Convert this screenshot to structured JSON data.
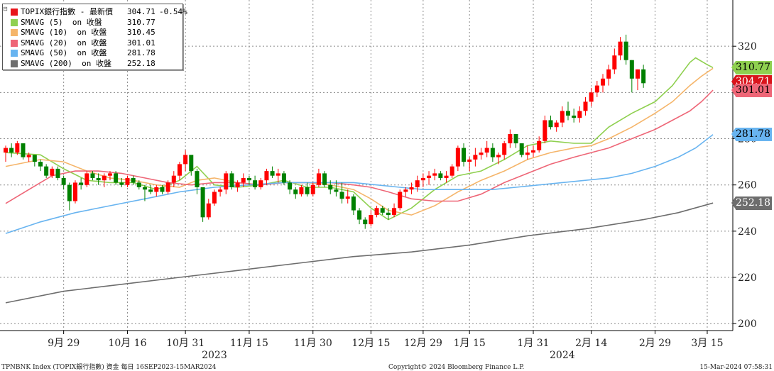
{
  "legend": {
    "rows": [
      {
        "name": "TOPIX銀行指數 - 最新價",
        "value": "304.71",
        "change": "-0.54%",
        "color": "#e8141b"
      },
      {
        "name": "SMAVG (5)  on 收盤",
        "value": "310.77",
        "change": "",
        "color": "#8fd050"
      },
      {
        "name": "SMAVG (10)  on 收盤",
        "value": "310.45",
        "change": "",
        "color": "#f5b56a"
      },
      {
        "name": "SMAVG (20)  on 收盤",
        "value": "301.01",
        "change": "",
        "color": "#ee6677"
      },
      {
        "name": "SMAVG (50)  on 收盤",
        "value": "281.78",
        "change": "",
        "color": "#68b4f0"
      },
      {
        "name": "SMAVG (200)  on 收盤",
        "value": "252.18",
        "change": "",
        "color": "#6d6d6d"
      }
    ]
  },
  "tags": [
    {
      "value": "310.77",
      "bg": "#8fd050",
      "fg": "#000000"
    },
    {
      "value": "304.71",
      "bg": "#d9141b",
      "fg": "#ffffff"
    },
    {
      "value": "301.01",
      "bg": "#ee6677",
      "fg": "#000000"
    },
    {
      "value": "281.78",
      "bg": "#68b4f0",
      "fg": "#000000"
    },
    {
      "value": "252.18",
      "bg": "#6d6d6d",
      "fg": "#ffffff"
    }
  ],
  "footer": {
    "left": "TPNBNK Index (TOPIX銀行指數) 資金  每日 16SEP2023-15MAR2024",
    "center": "Copyright© 2024 Bloomberg Finance L.P.",
    "right": "15-Mar-2024 07:58:31"
  },
  "chart_data": {
    "type": "candlestick",
    "ylim": [
      197,
      340
    ],
    "yticks": [
      200,
      220,
      240,
      260,
      280,
      300,
      320
    ],
    "x_tick_labels": [
      "9月 29",
      "10月 16",
      "10月 31",
      "11月 15",
      "11月 30",
      "12月 15",
      "12月 29",
      "1月 15",
      "1月 31",
      "2月 14",
      "2月 29",
      "3月 15"
    ],
    "x_tick_index": [
      10,
      21,
      31,
      42,
      53,
      63,
      72,
      80,
      91,
      101,
      112,
      121
    ],
    "year_labels": [
      {
        "label": "2023",
        "index": 36
      },
      {
        "label": "2024",
        "index": 96
      }
    ],
    "up_color": "#ff0000",
    "down_color": "#008000",
    "candles": [
      [
        274,
        277,
        270,
        276
      ],
      [
        276,
        278,
        272,
        274
      ],
      [
        274,
        279,
        273,
        278
      ],
      [
        278,
        278,
        271,
        272
      ],
      [
        272,
        274,
        270,
        273
      ],
      [
        273,
        273,
        268,
        270
      ],
      [
        270,
        271,
        266,
        268
      ],
      [
        268,
        269,
        263,
        264
      ],
      [
        264,
        268,
        263,
        267
      ],
      [
        267,
        268,
        262,
        263
      ],
      [
        263,
        264,
        258,
        260
      ],
      [
        260,
        261,
        249,
        253
      ],
      [
        253,
        262,
        252,
        261
      ],
      [
        261,
        263,
        258,
        260
      ],
      [
        260,
        266,
        259,
        265
      ],
      [
        265,
        266,
        262,
        263
      ],
      [
        263,
        265,
        260,
        262
      ],
      [
        262,
        265,
        259,
        264
      ],
      [
        264,
        266,
        262,
        265
      ],
      [
        265,
        266,
        260,
        261
      ],
      [
        261,
        263,
        259,
        260
      ],
      [
        260,
        264,
        259,
        263
      ],
      [
        263,
        264,
        260,
        261
      ],
      [
        261,
        262,
        258,
        259
      ],
      [
        259,
        260,
        253,
        258
      ],
      [
        258,
        260,
        256,
        257
      ],
      [
        257,
        260,
        255,
        259
      ],
      [
        259,
        260,
        256,
        257
      ],
      [
        257,
        262,
        256,
        261
      ],
      [
        261,
        266,
        259,
        264
      ],
      [
        264,
        270,
        262,
        269
      ],
      [
        269,
        275,
        266,
        273
      ],
      [
        273,
        272,
        264,
        266
      ],
      [
        266,
        267,
        256,
        259
      ],
      [
        259,
        259,
        244,
        246
      ],
      [
        246,
        254,
        245,
        252
      ],
      [
        252,
        258,
        251,
        257
      ],
      [
        257,
        259,
        255,
        258
      ],
      [
        258,
        266,
        256,
        265
      ],
      [
        265,
        266,
        258,
        259
      ],
      [
        259,
        262,
        257,
        261
      ],
      [
        261,
        265,
        259,
        263
      ],
      [
        263,
        264,
        260,
        262
      ],
      [
        262,
        264,
        258,
        259
      ],
      [
        259,
        263,
        258,
        262
      ],
      [
        262,
        267,
        260,
        266
      ],
      [
        266,
        268,
        263,
        264
      ],
      [
        264,
        267,
        261,
        265
      ],
      [
        265,
        266,
        260,
        261
      ],
      [
        261,
        262,
        256,
        258
      ],
      [
        258,
        259,
        254,
        256
      ],
      [
        256,
        260,
        255,
        259
      ],
      [
        259,
        261,
        255,
        256
      ],
      [
        256,
        261,
        255,
        260
      ],
      [
        260,
        267,
        259,
        265
      ],
      [
        265,
        266,
        259,
        260
      ],
      [
        260,
        262,
        256,
        258
      ],
      [
        258,
        262,
        255,
        257
      ],
      [
        257,
        261,
        252,
        254
      ],
      [
        254,
        258,
        252,
        255
      ],
      [
        255,
        256,
        247,
        249
      ],
      [
        249,
        250,
        243,
        245
      ],
      [
        245,
        246,
        241,
        243
      ],
      [
        243,
        249,
        242,
        247
      ],
      [
        247,
        251,
        246,
        250
      ],
      [
        250,
        251,
        247,
        248
      ],
      [
        248,
        250,
        245,
        247
      ],
      [
        247,
        252,
        246,
        250
      ],
      [
        250,
        258,
        249,
        257
      ],
      [
        257,
        259,
        255,
        258
      ],
      [
        258,
        261,
        256,
        259
      ],
      [
        259,
        264,
        257,
        262
      ],
      [
        262,
        265,
        259,
        263
      ],
      [
        263,
        266,
        260,
        264
      ],
      [
        264,
        267,
        262,
        265
      ],
      [
        265,
        266,
        262,
        263
      ],
      [
        263,
        266,
        261,
        264
      ],
      [
        264,
        269,
        263,
        268
      ],
      [
        268,
        277,
        266,
        276
      ],
      [
        276,
        278,
        268,
        270
      ],
      [
        270,
        272,
        266,
        271
      ],
      [
        271,
        276,
        268,
        273
      ],
      [
        273,
        276,
        271,
        274
      ],
      [
        274,
        279,
        272,
        276
      ],
      [
        276,
        278,
        270,
        272
      ],
      [
        272,
        274,
        269,
        273
      ],
      [
        273,
        279,
        271,
        278
      ],
      [
        278,
        284,
        276,
        282
      ],
      [
        282,
        282,
        276,
        278
      ],
      [
        278,
        278,
        272,
        273
      ],
      [
        273,
        277,
        271,
        274
      ],
      [
        274,
        277,
        272,
        275
      ],
      [
        275,
        281,
        274,
        279
      ],
      [
        279,
        290,
        278,
        288
      ],
      [
        288,
        290,
        284,
        285
      ],
      [
        285,
        288,
        283,
        287
      ],
      [
        287,
        294,
        285,
        292
      ],
      [
        292,
        296,
        288,
        290
      ],
      [
        290,
        293,
        287,
        289
      ],
      [
        289,
        294,
        287,
        292
      ],
      [
        292,
        298,
        290,
        296
      ],
      [
        296,
        302,
        294,
        300
      ],
      [
        300,
        305,
        298,
        303
      ],
      [
        303,
        308,
        300,
        306
      ],
      [
        306,
        312,
        303,
        310
      ],
      [
        310,
        319,
        308,
        316
      ],
      [
        316,
        324,
        314,
        322
      ],
      [
        322,
        325,
        312,
        314
      ],
      [
        314,
        314,
        300,
        306
      ],
      [
        306,
        310,
        301,
        310
      ],
      [
        310,
        312,
        302,
        304
      ]
    ],
    "series": [
      {
        "name": "SMAVG (5)  on 收盤",
        "color": "#8fd050",
        "points": [
          [
            0,
            274
          ],
          [
            6,
            273
          ],
          [
            10,
            267
          ],
          [
            14,
            262
          ],
          [
            18,
            261
          ],
          [
            22,
            261
          ],
          [
            26,
            258
          ],
          [
            30,
            262
          ],
          [
            33,
            268
          ],
          [
            36,
            260
          ],
          [
            40,
            259
          ],
          [
            44,
            260
          ],
          [
            48,
            262
          ],
          [
            52,
            259
          ],
          [
            56,
            259
          ],
          [
            60,
            257
          ],
          [
            63,
            250
          ],
          [
            66,
            245
          ],
          [
            70,
            250
          ],
          [
            74,
            258
          ],
          [
            78,
            264
          ],
          [
            82,
            266
          ],
          [
            86,
            271
          ],
          [
            90,
            277
          ],
          [
            94,
            279
          ],
          [
            98,
            278
          ],
          [
            101,
            278
          ],
          [
            104,
            285
          ],
          [
            108,
            291
          ],
          [
            112,
            296
          ],
          [
            115,
            303
          ],
          [
            118,
            313
          ],
          [
            119,
            315
          ],
          [
            121,
            312
          ],
          [
            122,
            310.77
          ]
        ]
      },
      {
        "name": "SMAVG (10)  on 收盤",
        "color": "#f5b56a",
        "points": [
          [
            0,
            268
          ],
          [
            6,
            271
          ],
          [
            10,
            270
          ],
          [
            14,
            266
          ],
          [
            18,
            263
          ],
          [
            22,
            262
          ],
          [
            26,
            260
          ],
          [
            30,
            259
          ],
          [
            33,
            262
          ],
          [
            36,
            263
          ],
          [
            40,
            261
          ],
          [
            44,
            260
          ],
          [
            48,
            261
          ],
          [
            52,
            261
          ],
          [
            56,
            260
          ],
          [
            60,
            258
          ],
          [
            63,
            254
          ],
          [
            66,
            249
          ],
          [
            70,
            247
          ],
          [
            74,
            251
          ],
          [
            78,
            257
          ],
          [
            82,
            262
          ],
          [
            86,
            266
          ],
          [
            90,
            271
          ],
          [
            94,
            274
          ],
          [
            98,
            276
          ],
          [
            101,
            277
          ],
          [
            104,
            280
          ],
          [
            108,
            285
          ],
          [
            112,
            291
          ],
          [
            115,
            296
          ],
          [
            118,
            303
          ],
          [
            120,
            307
          ],
          [
            122,
            310.45
          ]
        ]
      },
      {
        "name": "SMAVG (20)  on 收盤",
        "color": "#ee6677",
        "points": [
          [
            0,
            252
          ],
          [
            4,
            258
          ],
          [
            8,
            264
          ],
          [
            12,
            266
          ],
          [
            16,
            266
          ],
          [
            20,
            265
          ],
          [
            24,
            263
          ],
          [
            28,
            261
          ],
          [
            32,
            260
          ],
          [
            36,
            261
          ],
          [
            40,
            261
          ],
          [
            44,
            260
          ],
          [
            48,
            261
          ],
          [
            52,
            261
          ],
          [
            56,
            261
          ],
          [
            60,
            260
          ],
          [
            63,
            259
          ],
          [
            66,
            257
          ],
          [
            70,
            254
          ],
          [
            74,
            253
          ],
          [
            78,
            253
          ],
          [
            82,
            256
          ],
          [
            86,
            261
          ],
          [
            90,
            265
          ],
          [
            94,
            269
          ],
          [
            98,
            272
          ],
          [
            101,
            274
          ],
          [
            104,
            276
          ],
          [
            108,
            280
          ],
          [
            112,
            284
          ],
          [
            115,
            288
          ],
          [
            118,
            292
          ],
          [
            120,
            296
          ],
          [
            122,
            301.01
          ]
        ]
      },
      {
        "name": "SMAVG (50)  on 收盤",
        "color": "#68b4f0",
        "points": [
          [
            0,
            239
          ],
          [
            6,
            244
          ],
          [
            12,
            248
          ],
          [
            18,
            251
          ],
          [
            24,
            254
          ],
          [
            30,
            257
          ],
          [
            36,
            259
          ],
          [
            42,
            260
          ],
          [
            48,
            261
          ],
          [
            54,
            261
          ],
          [
            60,
            261
          ],
          [
            64,
            260
          ],
          [
            68,
            259
          ],
          [
            72,
            258
          ],
          [
            76,
            258
          ],
          [
            80,
            258
          ],
          [
            84,
            258
          ],
          [
            88,
            259
          ],
          [
            92,
            260
          ],
          [
            96,
            261
          ],
          [
            100,
            262
          ],
          [
            104,
            263
          ],
          [
            108,
            265
          ],
          [
            112,
            268
          ],
          [
            116,
            272
          ],
          [
            119,
            276
          ],
          [
            122,
            281.78
          ]
        ]
      },
      {
        "name": "SMAVG (200)  on 收盤",
        "color": "#6d6d6d",
        "points": [
          [
            0,
            209
          ],
          [
            10,
            214
          ],
          [
            20,
            217
          ],
          [
            30,
            220
          ],
          [
            40,
            223
          ],
          [
            50,
            226
          ],
          [
            60,
            229
          ],
          [
            70,
            231
          ],
          [
            80,
            234
          ],
          [
            90,
            238
          ],
          [
            100,
            241
          ],
          [
            110,
            245
          ],
          [
            116,
            248
          ],
          [
            122,
            252.18
          ]
        ]
      }
    ]
  }
}
